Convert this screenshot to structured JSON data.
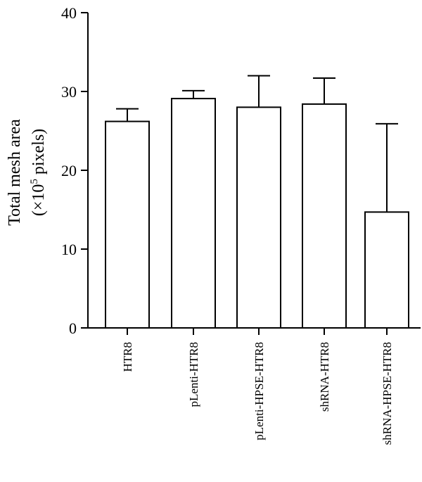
{
  "chart_data": {
    "type": "bar",
    "categories": [
      "HTR8",
      "pLenti-HTR8",
      "pLenti-HPSE-HTR8",
      "shRNA-HTR8",
      "shRNA-HPSE-HTR8"
    ],
    "values": [
      26.2,
      29.1,
      28.0,
      28.4,
      14.7
    ],
    "error_upper": [
      1.6,
      1.0,
      4.0,
      3.3,
      11.2
    ],
    "ylabel_line1": "Total mesh area",
    "ylabel_line2_prefix": "(×10",
    "ylabel_line2_sup": "5",
    "ylabel_line2_suffix": " pixels)",
    "ylim": [
      0,
      40
    ],
    "yticks": [
      0,
      10,
      20,
      30,
      40
    ],
    "grid": false,
    "bar_fill": "#ffffff",
    "bar_stroke": "#000000"
  }
}
